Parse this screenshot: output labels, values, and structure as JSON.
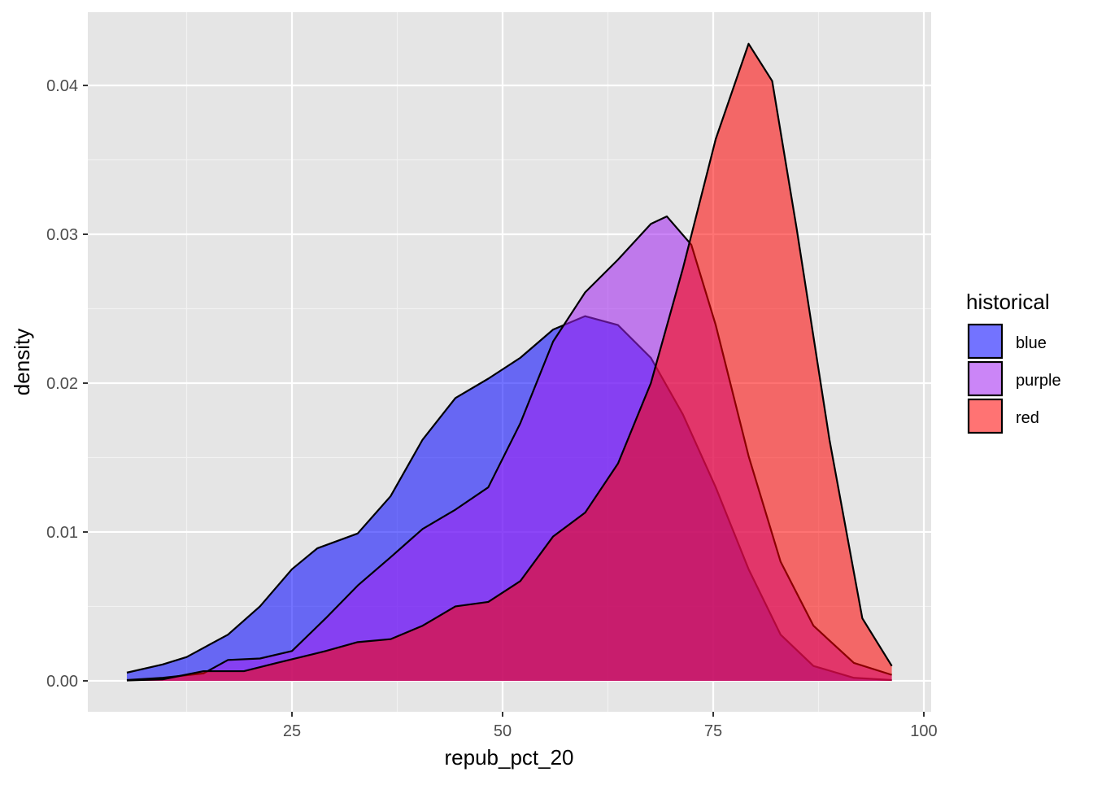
{
  "chart_data": {
    "type": "area",
    "subtype": "density",
    "title": "",
    "xlabel": "repub_pct_20",
    "ylabel": "density",
    "xlim": [
      0.77,
      100.87
    ],
    "ylim": [
      -0.00208,
      0.04492
    ],
    "x_ticks": [
      25,
      50,
      75,
      100
    ],
    "x_tick_labels": [
      "25",
      "50",
      "75",
      "100"
    ],
    "y_ticks": [
      0,
      0.01,
      0.02,
      0.03,
      0.04
    ],
    "y_tick_labels": [
      "0.00",
      "0.01",
      "0.02",
      "0.03",
      "0.04"
    ],
    "grid": true,
    "legend": {
      "title": "historical",
      "placement": "right"
    },
    "series": [
      {
        "name": "blue",
        "color": "#0000ff",
        "x": [
          5.4,
          9.65,
          12.5,
          17.4,
          21.2,
          25,
          28,
          32.8,
          36.7,
          40.5,
          44.4,
          48.3,
          52.1,
          56,
          59.8,
          63.7,
          67.6,
          71.4,
          75.3,
          79.2,
          83,
          86.9,
          91.7,
          96.2
        ],
        "y": [
          0.00055,
          0.0011,
          0.0016,
          0.0031,
          0.005,
          0.0075,
          0.0089,
          0.0099,
          0.0124,
          0.0162,
          0.019,
          0.0203,
          0.0217,
          0.0236,
          0.0245,
          0.0239,
          0.0217,
          0.0179,
          0.013,
          0.0075,
          0.0031,
          0.001,
          0.0002,
          5e-05
        ]
      },
      {
        "name": "purple",
        "color": "#a020f0",
        "x": [
          5.4,
          9.65,
          14.5,
          17.4,
          21.2,
          25,
          29,
          32.8,
          36.7,
          40.5,
          44.4,
          48.3,
          52.1,
          56,
          59.8,
          63.7,
          67.6,
          69.5,
          72.4,
          75.3,
          79.2,
          83,
          86.9,
          91.7,
          96.2
        ],
        "y": [
          5e-05,
          0.0002,
          0.0005,
          0.0014,
          0.0015,
          0.002,
          0.0042,
          0.0064,
          0.0083,
          0.0102,
          0.0115,
          0.013,
          0.0173,
          0.0228,
          0.0261,
          0.0283,
          0.0307,
          0.0312,
          0.0293,
          0.0239,
          0.0151,
          0.008,
          0.0037,
          0.0012,
          0.0004
        ]
      },
      {
        "name": "red",
        "color": "#ff0000",
        "x": [
          5.4,
          9.65,
          14.5,
          19.3,
          23.2,
          29,
          32.8,
          36.7,
          40.5,
          44.4,
          48.3,
          52.1,
          56,
          59.8,
          63.7,
          67.6,
          71.4,
          75.3,
          79.2,
          82,
          84.9,
          88.8,
          92.7,
          96.2
        ],
        "y": [
          2e-05,
          0.0001,
          0.00065,
          0.00065,
          0.0012,
          0.002,
          0.0026,
          0.0028,
          0.0037,
          0.005,
          0.0053,
          0.0067,
          0.0097,
          0.0113,
          0.0146,
          0.02,
          0.0277,
          0.0364,
          0.0428,
          0.0403,
          0.0304,
          0.0162,
          0.0042,
          0.001
        ]
      }
    ]
  }
}
